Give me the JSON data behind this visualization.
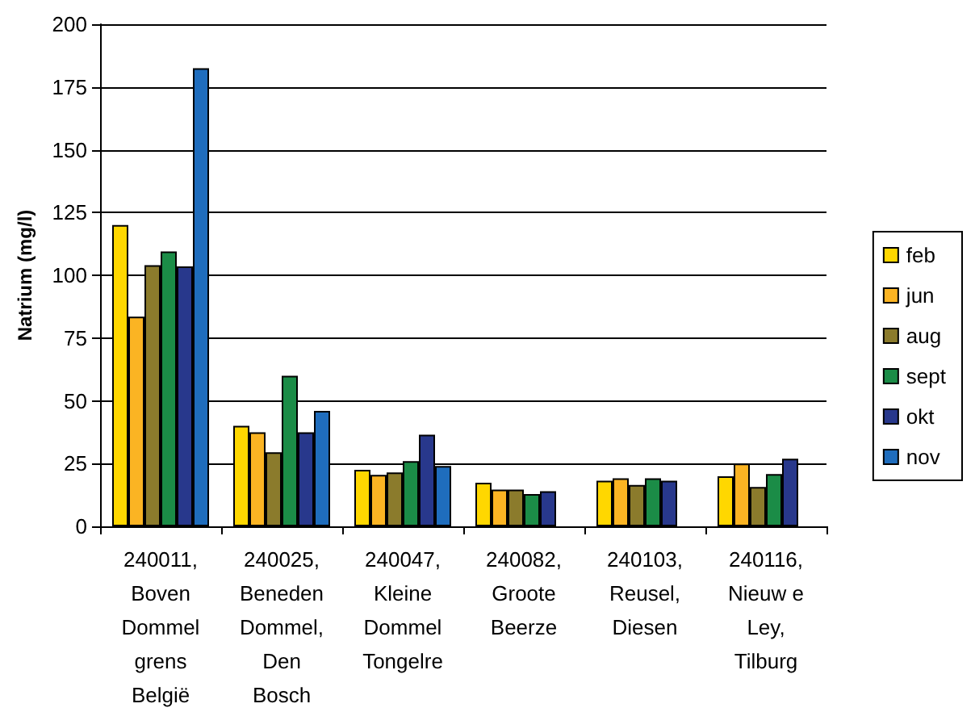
{
  "chart_data": {
    "type": "bar",
    "ylabel": "Natrium (mg/l)",
    "categories": [
      "240011,\nBoven\nDommel\ngrens\nBelgië",
      "240025,\nBeneden\nDommel,\nDen\nBosch",
      "240047,\nKleine\nDommel\nTongelre",
      "240082,\nGroote\nBeerze",
      "240103,\nReusel,\nDiesen",
      "240116,\nNieuw e\nLey,\nTilburg"
    ],
    "series": [
      {
        "name": "feb",
        "color": "#ffd700",
        "values": [
          120,
          40,
          22.5,
          17.4,
          18.2,
          19.9
        ]
      },
      {
        "name": "jun",
        "color": "#fbb423",
        "values": [
          83.5,
          37.5,
          20.5,
          14.6,
          19.1,
          25
        ]
      },
      {
        "name": "aug",
        "color": "#8b7b2c",
        "values": [
          104,
          29.5,
          21.5,
          14.6,
          16.5,
          15.7
        ]
      },
      {
        "name": "sept",
        "color": "#1b8c47",
        "values": [
          109.5,
          60,
          26,
          12.9,
          19.1,
          20.8
        ]
      },
      {
        "name": "okt",
        "color": "#28388c",
        "values": [
          103.5,
          37.5,
          36.5,
          14,
          18.2,
          26.9
        ]
      },
      {
        "name": "nov",
        "color": "#1f6dbd",
        "values": [
          182.5,
          46,
          24,
          null,
          null,
          null
        ]
      }
    ],
    "ylim": [
      0,
      200
    ],
    "yticks": [
      0,
      25,
      50,
      75,
      100,
      125,
      150,
      175,
      200
    ],
    "grid": "y",
    "legend": "right"
  }
}
